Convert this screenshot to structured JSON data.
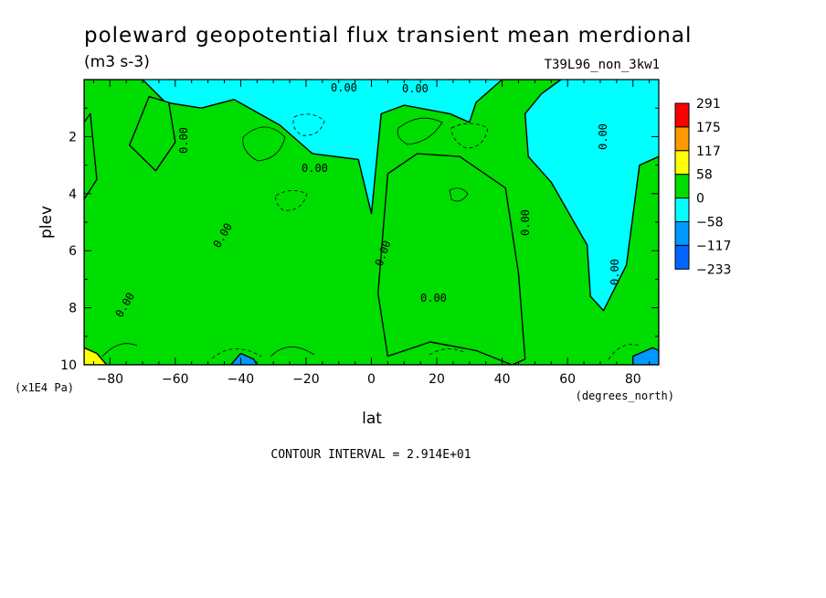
{
  "chart_data": {
    "type": "heatmap",
    "title": "poleward geopotential flux transient mean merdional",
    "units": "(m3 s-3)",
    "run_id": "T39L96_non_3kw1",
    "xlabel": "lat",
    "ylabel": "plev",
    "x_units": "(degrees_north)",
    "y_units": "(x1E4 Pa)",
    "x_ticks": [
      -80,
      -60,
      -40,
      -20,
      0,
      20,
      40,
      60,
      80
    ],
    "y_ticks": [
      2,
      4,
      6,
      8,
      10
    ],
    "xlim": [
      -87.9,
      87.9
    ],
    "ylim": [
      10,
      0
    ],
    "footer": "CONTOUR INTERVAL = 2.914E+01",
    "contour_label": "0.00",
    "colorbar": {
      "levels": [
        "291",
        "175",
        "117",
        "58",
        "0",
        "-58",
        "-117",
        "-233"
      ],
      "colors": [
        "#ff0000",
        "#ff9900",
        "#ffff00",
        "#00dd00",
        "#00ffff",
        "#0099ff",
        "#0066ff"
      ]
    },
    "background_color": "#00ffff",
    "positive_regions": [
      {
        "range": "0 to 58",
        "color": "#00dd00",
        "outline": [
          [
            -87.9,
            0
          ],
          [
            -70,
            0
          ],
          [
            -63,
            0.8
          ],
          [
            -52,
            1
          ],
          [
            -42,
            0.7
          ],
          [
            -28,
            1.6
          ],
          [
            -18,
            2.6
          ],
          [
            -4,
            2.8
          ],
          [
            0,
            4.7
          ],
          [
            3,
            1.2
          ],
          [
            10,
            0.9
          ],
          [
            24,
            1.2
          ],
          [
            30,
            1.5
          ],
          [
            32,
            0.8
          ],
          [
            40,
            0
          ],
          [
            58,
            0
          ],
          [
            52,
            0.5
          ],
          [
            47,
            1.2
          ],
          [
            48,
            2.7
          ],
          [
            55,
            3.6
          ],
          [
            66,
            5.8
          ],
          [
            67,
            7.6
          ],
          [
            71,
            8.1
          ],
          [
            78,
            6.5
          ],
          [
            82,
            3
          ],
          [
            87.9,
            2.7
          ],
          [
            87.9,
            10
          ],
          [
            -87.9,
            10
          ]
        ]
      },
      {
        "range": "0 to 58",
        "color": "#00dd00",
        "outline": [
          [
            -87.9,
            1.5
          ],
          [
            -86,
            1.2
          ],
          [
            -84,
            3.5
          ],
          [
            -87.9,
            4.2
          ]
        ]
      },
      {
        "range": "0 to 58",
        "color": "#00dd00",
        "outline": [
          [
            -68,
            0.6
          ],
          [
            -62,
            0.8
          ],
          [
            -60,
            2.2
          ],
          [
            -66,
            3.2
          ],
          [
            -74,
            2.3
          ]
        ]
      },
      {
        "range": "0 to 58",
        "color": "#00dd00",
        "outline": [
          [
            5,
            3.3
          ],
          [
            14,
            2.6
          ],
          [
            27,
            2.7
          ],
          [
            41,
            3.8
          ],
          [
            45,
            6.8
          ],
          [
            47,
            9.8
          ],
          [
            43,
            10
          ],
          [
            32,
            9.5
          ],
          [
            18,
            9.2
          ],
          [
            5,
            9.7
          ],
          [
            2,
            7.5
          ]
        ]
      }
    ],
    "positive_regions_high": [
      {
        "range": "58 to 117",
        "color": "#ffff00",
        "outline": [
          [
            -87.9,
            9.4
          ],
          [
            -84,
            9.6
          ],
          [
            -81,
            10
          ],
          [
            -87.9,
            10
          ]
        ]
      }
    ],
    "negative_regions": [
      {
        "range": "-58 to -117",
        "color": "#0099ff",
        "outline": [
          [
            -40,
            9.6
          ],
          [
            -36,
            9.8
          ],
          [
            -35,
            10
          ],
          [
            -43,
            10
          ]
        ]
      },
      {
        "range": "-58 to -117",
        "color": "#0099ff",
        "outline": [
          [
            80,
            9.7
          ],
          [
            86,
            9.4
          ],
          [
            87.9,
            9.5
          ],
          [
            87.9,
            10
          ],
          [
            80,
            10
          ]
        ]
      }
    ]
  }
}
